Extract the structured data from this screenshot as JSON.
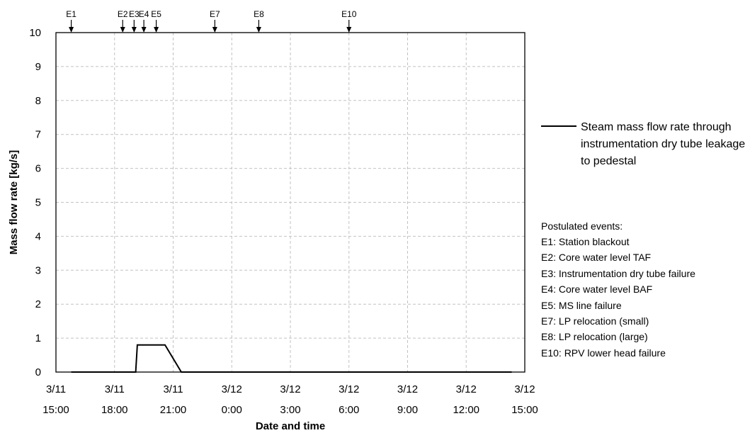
{
  "chart_data": {
    "type": "line",
    "title": "",
    "xlabel": "Date and time",
    "ylabel": "Mass flow rate [kg/s]",
    "x_unit": "date-time (3/11 15:00 to 3/12 15:00)",
    "xlim": [
      "3/11 15:00",
      "3/12 15:00"
    ],
    "ylim": [
      0,
      10
    ],
    "y_ticks": [
      "0",
      "1",
      "2",
      "3",
      "4",
      "5",
      "6",
      "7",
      "8",
      "9",
      "10"
    ],
    "x_ticks": [
      {
        "date": "3/11",
        "time": "15:00"
      },
      {
        "date": "3/11",
        "time": "18:00"
      },
      {
        "date": "3/11",
        "time": "21:00"
      },
      {
        "date": "3/12",
        "time": "0:00"
      },
      {
        "date": "3/12",
        "time": "3:00"
      },
      {
        "date": "3/12",
        "time": "6:00"
      },
      {
        "date": "3/12",
        "time": "9:00"
      },
      {
        "date": "3/12",
        "time": "12:00"
      },
      {
        "date": "3/12",
        "time": "15:00"
      }
    ],
    "grid": true,
    "legend_position": "right",
    "series": [
      {
        "name": "Steam mass flow rate through instrumentation dry tube leakage to pedestal",
        "color": "#000000",
        "points": [
          {
            "x": "3/11 15:47",
            "y": 0
          },
          {
            "x": "3/11 19:05",
            "y": 0
          },
          {
            "x": "3/11 19:10",
            "y": 0.8
          },
          {
            "x": "3/11 20:35",
            "y": 0.8
          },
          {
            "x": "3/11 21:25",
            "y": 0
          },
          {
            "x": "3/12 14:20",
            "y": 0
          }
        ]
      }
    ],
    "event_markers": [
      {
        "label": "E1",
        "x": "3/11 15:47"
      },
      {
        "label": "E2",
        "x": "3/11 18:25"
      },
      {
        "label": "E3",
        "x": "3/11 19:00"
      },
      {
        "label": "E4",
        "x": "3/11 19:30"
      },
      {
        "label": "E5",
        "x": "3/11 20:08"
      },
      {
        "label": "E7",
        "x": "3/11 23:08"
      },
      {
        "label": "E8",
        "x": "3/12 1:23"
      },
      {
        "label": "E10",
        "x": "3/12 6:00"
      }
    ],
    "events_title": "Postulated events:",
    "events": [
      "E1: Station blackout",
      "E2: Core water level TAF",
      "E3: Instrumentation dry tube failure",
      "E4: Core water level BAF",
      "E5: MS line failure",
      "E7: LP relocation (small)",
      "E8: LP relocation (large)",
      "E10: RPV lower head failure"
    ]
  }
}
